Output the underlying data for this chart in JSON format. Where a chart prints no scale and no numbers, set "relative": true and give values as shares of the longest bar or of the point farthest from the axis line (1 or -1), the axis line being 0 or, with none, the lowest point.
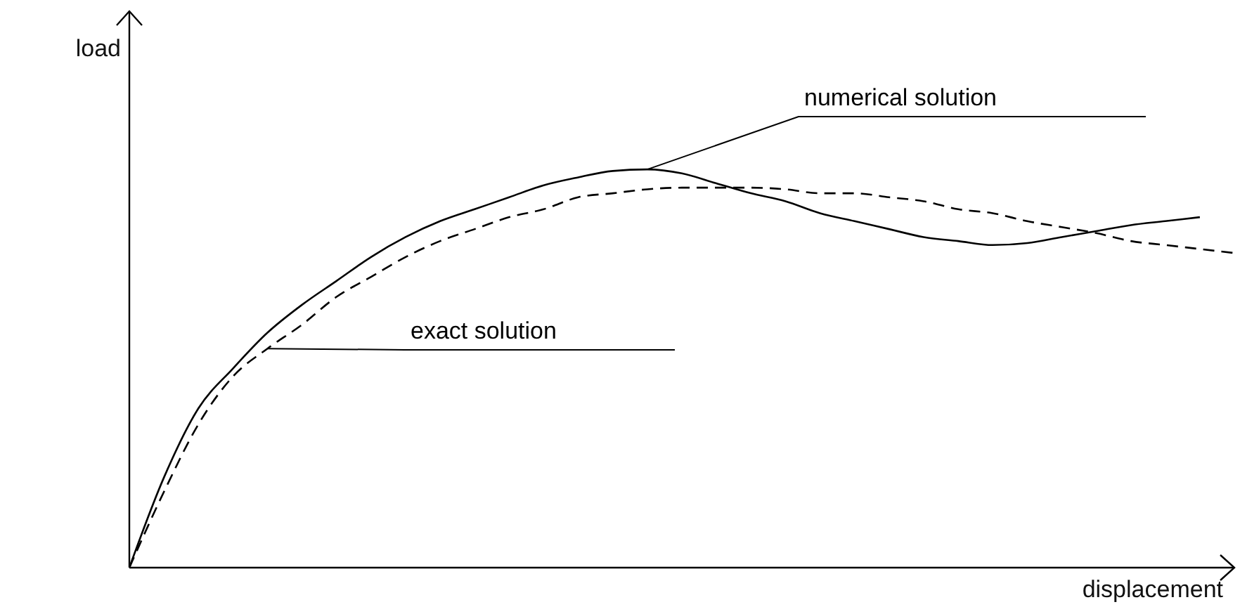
{
  "chart_data": {
    "type": "line",
    "relative": true,
    "xlabel": "displacement",
    "ylabel": "load",
    "categories": [
      null,
      null,
      null,
      null,
      null,
      null,
      null,
      null,
      null,
      null,
      null,
      null,
      null,
      null,
      null,
      null,
      null,
      null,
      null,
      null,
      null,
      null,
      null,
      null,
      null,
      null,
      null,
      null,
      null,
      null,
      null,
      null,
      null
    ],
    "series": [
      {
        "name": "numerical solution",
        "color": "#000000",
        "line_style": "solid",
        "values": [
          0,
          0.226,
          0.4,
          0.5,
          0.59,
          0.66,
          0.72,
          0.78,
          0.83,
          0.87,
          0.9,
          0.93,
          0.96,
          0.98,
          0.996,
          1,
          0.99,
          0.965,
          0.94,
          0.92,
          0.89,
          0.87,
          0.85,
          0.83,
          0.82,
          0.81,
          0.815,
          0.83,
          0.845,
          0.86,
          0.87,
          0.88,
          null
        ]
      },
      {
        "name": "exact solution",
        "color": "#000000",
        "line_style": "dashed",
        "values": [
          0,
          0.19,
          0.36,
          0.48,
          0.55,
          0.61,
          0.68,
          0.73,
          0.78,
          0.82,
          0.85,
          0.88,
          0.9,
          0.93,
          0.94,
          0.95,
          0.954,
          0.954,
          0.954,
          0.95,
          0.94,
          0.94,
          0.93,
          0.92,
          0.9,
          0.89,
          0.87,
          0.855,
          0.84,
          0.82,
          0.81,
          0.8,
          0.79
        ]
      }
    ],
    "marker": "none"
  }
}
